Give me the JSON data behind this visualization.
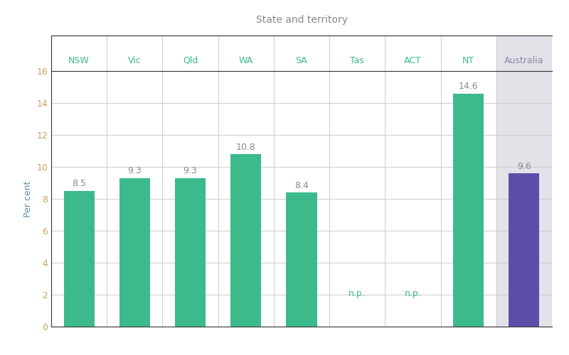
{
  "categories": [
    "NSW",
    "Vic",
    "Qld",
    "WA",
    "SA",
    "Tas",
    "ACT",
    "NT",
    "Australia"
  ],
  "values": [
    8.5,
    9.3,
    9.3,
    10.8,
    8.4,
    null,
    null,
    14.6,
    9.6
  ],
  "labels": [
    "8.5",
    "9.3",
    "9.3",
    "10.8",
    "8.4",
    "n.p.",
    "n.p.",
    "14.6",
    "9.6"
  ],
  "bar_colors": [
    "#3dba8c",
    "#3dba8c",
    "#3dba8c",
    "#3dba8c",
    "#3dba8c",
    "#3dba8c",
    "#3dba8c",
    "#3dba8c",
    "#5b4ea8"
  ],
  "australia_bg": "#e2e2e8",
  "title": "State and territory",
  "ylabel": "Per cent",
  "ylim": [
    0,
    16
  ],
  "yticks": [
    0,
    2,
    4,
    6,
    8,
    10,
    12,
    14,
    16
  ],
  "label_color": "#888888",
  "ytick_color": "#c8a060",
  "tick_color": "#3dba8c",
  "australia_tick_color": "#8888aa",
  "np_label_color": "#3dba8c",
  "ylabel_color": "#5b8cbb",
  "label_fontsize": 9,
  "title_fontsize": 10,
  "ylabel_fontsize": 9,
  "bar_width": 0.55,
  "grid_color": "#cccccc",
  "spine_color": "#333333",
  "bg_color": "#ffffff"
}
